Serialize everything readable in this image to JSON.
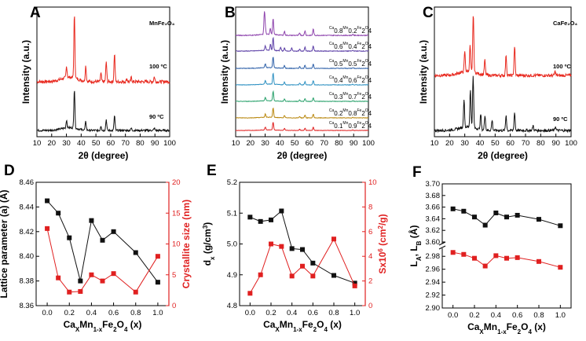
{
  "chart_data": [
    {
      "panel": "A",
      "type": "line",
      "xlabel": "2θ (degree)",
      "ylabel": "Intensity (a.u.)",
      "xlim": [
        10,
        100
      ],
      "xticks": [
        10,
        20,
        30,
        40,
        50,
        60,
        70,
        80,
        90,
        100
      ],
      "title": "MnFe2O4",
      "series": [
        {
          "name": "100 ºC",
          "color": "#e8281e",
          "peaks": [
            [
              30.1,
              0.18
            ],
            [
              35.4,
              1.0
            ],
            [
              43.1,
              0.25
            ],
            [
              53.4,
              0.13
            ],
            [
              57.0,
              0.32
            ],
            [
              62.6,
              0.45
            ],
            [
              71.0,
              0.05
            ],
            [
              74.0,
              0.07
            ],
            [
              89.6,
              0.08
            ]
          ]
        },
        {
          "name": "90 ºC",
          "color": "#111111",
          "peaks": [
            [
              30.1,
              0.2
            ],
            [
              35.4,
              1.0
            ],
            [
              43.1,
              0.22
            ],
            [
              53.4,
              0.12
            ],
            [
              57.0,
              0.28
            ],
            [
              62.6,
              0.38
            ],
            [
              74.0,
              0.06
            ],
            [
              89.6,
              0.06
            ]
          ]
        }
      ]
    },
    {
      "panel": "B",
      "type": "line",
      "xlabel": "2θ (degree)",
      "ylabel": "Intensity (a.u.)",
      "xlim": [
        10,
        100
      ],
      "xticks": [
        10,
        20,
        30,
        40,
        50,
        60,
        70,
        80,
        90,
        100
      ],
      "series": [
        {
          "name": "Ca0.8Mn0.2Fe2O4",
          "color": "#8e44ad"
        },
        {
          "name": "Ca0.6Mn0.4Fe2O4",
          "color": "#5b3ea6"
        },
        {
          "name": "Ca0.5Mn0.5Fe2O4",
          "color": "#2c5fa8"
        },
        {
          "name": "Ca0.4Mn0.6Fe2O4",
          "color": "#2a8fc1"
        },
        {
          "name": "Ca0.3Mn0.7Fe2O4",
          "color": "#27a06a"
        },
        {
          "name": "Ca0.2Mn0.8Fe2O4",
          "color": "#b8860b"
        },
        {
          "name": "Ca0.1Mn0.9Fe2O4",
          "color": "#e02020"
        }
      ]
    },
    {
      "panel": "C",
      "type": "line",
      "xlabel": "2θ (degree)",
      "ylabel": "Intensity (a.u.)",
      "xlim": [
        10,
        100
      ],
      "xticks": [
        10,
        20,
        30,
        40,
        50,
        60,
        70,
        80,
        90,
        100
      ],
      "title": "CaFe2O4",
      "series": [
        {
          "name": "100 ºC",
          "color": "#e8281e",
          "peaks": [
            [
              30.0,
              0.35
            ],
            [
              33.5,
              0.45
            ],
            [
              35.6,
              1.0
            ],
            [
              43.2,
              0.25
            ],
            [
              57.2,
              0.35
            ],
            [
              62.8,
              0.5
            ],
            [
              89.5,
              0.07
            ]
          ]
        },
        {
          "name": "90 ºC",
          "color": "#111111",
          "peaks": [
            [
              29.5,
              0.55
            ],
            [
              33.7,
              0.75
            ],
            [
              35.5,
              1.0
            ],
            [
              40.5,
              0.3
            ],
            [
              43.3,
              0.3
            ],
            [
              48.0,
              0.2
            ],
            [
              57.2,
              0.3
            ],
            [
              62.8,
              0.35
            ],
            [
              75.0,
              0.1
            ],
            [
              89.7,
              0.08
            ]
          ]
        }
      ]
    },
    {
      "panel": "D",
      "type": "line",
      "xlabel": "CaxMn1-xFe2O4 (x)",
      "ylabel": "Lattice parameter (a) (Å)",
      "ylabel2": "Crystallite size (nm)",
      "xlim": [
        -0.1,
        1.1
      ],
      "ylim": [
        8.36,
        8.46
      ],
      "ylim2": [
        0,
        20
      ],
      "xticks": [
        "0.0",
        "0.2",
        "0.4",
        "0.6",
        "0.8",
        "1.0"
      ],
      "yticks": [
        "8.36",
        "8.38",
        "8.40",
        "8.42",
        "8.44",
        "8.46"
      ],
      "yticks2": [
        "0",
        "5",
        "10",
        "15",
        "20"
      ],
      "x": [
        0.0,
        0.1,
        0.2,
        0.3,
        0.4,
        0.5,
        0.6,
        0.8,
        1.0
      ],
      "series": [
        {
          "name": "Lattice parameter",
          "axis": "left",
          "color": "#111111",
          "values": [
            8.445,
            8.435,
            8.415,
            8.38,
            8.429,
            8.413,
            8.42,
            8.403,
            8.379
          ]
        },
        {
          "name": "Crystallite size",
          "axis": "right",
          "color": "#e02020",
          "values": [
            12.5,
            4.5,
            2.2,
            2.3,
            5.0,
            4.0,
            5.2,
            2.2,
            8.0
          ]
        }
      ]
    },
    {
      "panel": "E",
      "type": "line",
      "xlabel": "CaxMn1-xFe2O4 (x)",
      "ylabel": "dx (g/cm3)",
      "ylabel2": "Sx10^6 (cm2/g)",
      "xlim": [
        -0.1,
        1.1
      ],
      "ylim": [
        4.8,
        5.2
      ],
      "ylim2": [
        0,
        10
      ],
      "xticks": [
        "0.0",
        "0.2",
        "0.4",
        "0.6",
        "0.8",
        "1.0"
      ],
      "yticks": [
        "4.8",
        "4.9",
        "5.0",
        "5.1",
        "5.2"
      ],
      "yticks2": [
        "0",
        "2",
        "4",
        "6",
        "8",
        "10"
      ],
      "x": [
        0.0,
        0.1,
        0.2,
        0.3,
        0.4,
        0.5,
        0.6,
        0.8,
        1.0
      ],
      "series": [
        {
          "name": "dx",
          "axis": "left",
          "color": "#111111",
          "values": [
            5.087,
            5.073,
            5.078,
            5.107,
            4.985,
            4.982,
            4.938,
            4.898,
            4.873
          ]
        },
        {
          "name": "S",
          "axis": "right",
          "color": "#e02020",
          "values": [
            1.0,
            2.5,
            5.0,
            4.8,
            2.4,
            3.2,
            2.4,
            5.4,
            1.6
          ]
        }
      ]
    },
    {
      "panel": "F",
      "type": "line",
      "xlabel": "CaxMn1-xFe2O4 (x)",
      "ylabel": "LA, LB (Å)",
      "xlim": [
        -0.1,
        1.1
      ],
      "axis_break": true,
      "yticks_upper": [
        "3.60",
        "3.62",
        "3.64",
        "3.66",
        "3.68",
        "3.70"
      ],
      "yticks_lower": [
        "2.90",
        "2.92",
        "2.94",
        "2.96",
        "2.98"
      ],
      "xticks": [
        "0.0",
        "0.2",
        "0.4",
        "0.6",
        "0.8",
        "1.0"
      ],
      "x": [
        0.0,
        0.1,
        0.2,
        0.3,
        0.4,
        0.5,
        0.6,
        0.8,
        1.0
      ],
      "series": [
        {
          "name": "LA",
          "color": "#111111",
          "values": [
            3.657,
            3.653,
            3.643,
            3.629,
            3.65,
            3.643,
            3.646,
            3.639,
            3.628
          ]
        },
        {
          "name": "LB",
          "color": "#e02020",
          "values": [
            2.986,
            2.983,
            2.977,
            2.965,
            2.981,
            2.977,
            2.978,
            2.972,
            2.963
          ]
        }
      ]
    }
  ],
  "panels": {
    "A": {
      "letter": "A",
      "title": "MnFe₂O₄",
      "label_top": "100 ºC",
      "label_bottom": "90 ºC"
    },
    "B": {
      "letter": "B"
    },
    "C": {
      "letter": "C",
      "title": "CaFe₂O₄",
      "label_top": "100 ºC",
      "label_bottom": "90 ºC"
    },
    "D": {
      "letter": "D"
    },
    "E": {
      "letter": "E"
    },
    "F": {
      "letter": "F"
    }
  }
}
